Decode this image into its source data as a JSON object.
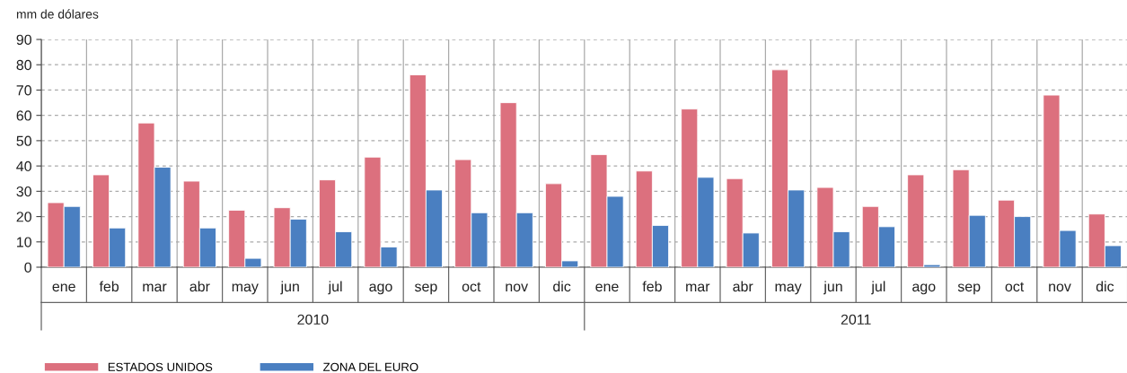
{
  "chart_data": {
    "type": "bar",
    "ylabel": "mm de dólares",
    "categories": [
      "ene",
      "feb",
      "mar",
      "abr",
      "may",
      "jun",
      "jul",
      "ago",
      "sep",
      "oct",
      "nov",
      "dic",
      "ene",
      "feb",
      "mar",
      "abr",
      "may",
      "jun",
      "jul",
      "ago",
      "sep",
      "oct",
      "nov",
      "dic"
    ],
    "series": [
      {
        "name": "ESTADOS UNIDOS",
        "color": "#dc707e",
        "values": [
          25.5,
          36.5,
          57,
          34,
          22.5,
          23.5,
          34.5,
          43.5,
          76,
          42.5,
          65,
          33,
          44.5,
          38,
          62.5,
          35,
          78,
          31.5,
          24,
          36.5,
          38.5,
          26.5,
          68,
          21
        ]
      },
      {
        "name": "ZONA DEL EURO",
        "color": "#4a7fc1",
        "values": [
          24,
          15.5,
          39.5,
          15.5,
          3.5,
          19,
          14,
          8,
          30.5,
          21.5,
          21.5,
          2.5,
          28,
          16.5,
          35.5,
          13.5,
          30.5,
          14,
          16,
          1,
          20.5,
          20,
          14.5,
          8.5
        ]
      }
    ],
    "annotations": [
      "2010",
      "2011"
    ],
    "ylim": [
      0,
      90
    ],
    "yticks": [
      0,
      10,
      20,
      30,
      40,
      50,
      60,
      70,
      80,
      90
    ],
    "grid": "y",
    "legend": "bottom left"
  }
}
